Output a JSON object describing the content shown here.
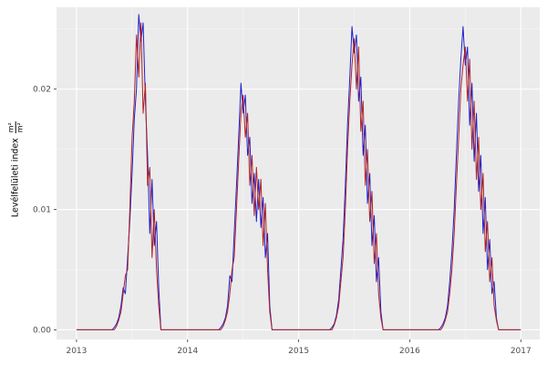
{
  "figure": {
    "background": "#FFFFFF"
  },
  "chart_data": {
    "type": "line",
    "title": "",
    "xlabel": "",
    "ylabel": {
      "text": "Levélfelületi index",
      "fraction_numerator": "m²",
      "fraction_denominator": "m²"
    },
    "x_start": 2013,
    "x_step": 0.02,
    "xlim": [
      2012.82,
      2017.17
    ],
    "ylim": [
      -0.0008,
      0.0268
    ],
    "x_ticks": {
      "labels": [
        "2013",
        "2014",
        "2015",
        "2016",
        "2017"
      ],
      "values": [
        2013,
        2014,
        2015,
        2016,
        2017
      ]
    },
    "y_ticks": {
      "labels": [
        "0.00",
        "0.01",
        "0.02"
      ],
      "values": [
        0,
        0.01,
        0.02
      ]
    },
    "x_minor": [
      2013.5,
      2014.5,
      2015.5,
      2016.5
    ],
    "y_minor": [
      0.005,
      0.015,
      0.025
    ],
    "grid": true,
    "legend": "none",
    "theme": {
      "panel_bg": "#EBEBEB",
      "grid_major": "#FFFFFF",
      "grid_minor": "#F7F7F7",
      "tick_label_color": "#4D4D4D",
      "tick_mark_color": "#333333",
      "axis_title_color": "#000000"
    },
    "series": [
      {
        "name": "blue",
        "color": "#2020CC",
        "values": [
          0,
          0,
          0,
          0,
          0,
          0,
          0,
          0,
          0,
          0,
          0,
          0,
          0,
          0,
          0,
          0,
          0,
          0.0002,
          0.0005,
          0.001,
          0.002,
          0.0035,
          0.003,
          0.006,
          0.009,
          0.013,
          0.0175,
          0.02,
          0.0262,
          0.024,
          0.0255,
          0.019,
          0.0145,
          0.008,
          0.0125,
          0.007,
          0.009,
          0.0035,
          0,
          0,
          0,
          0,
          0,
          0,
          0,
          0,
          0,
          0,
          0,
          0,
          0,
          0,
          0,
          0,
          0,
          0,
          0,
          0,
          0,
          0,
          0,
          0,
          0,
          0,
          0,
          0.0002,
          0.0005,
          0.001,
          0.002,
          0.0045,
          0.004,
          0.008,
          0.012,
          0.016,
          0.0205,
          0.018,
          0.0195,
          0.0145,
          0.016,
          0.0105,
          0.013,
          0.009,
          0.0125,
          0.0085,
          0.011,
          0.006,
          0.008,
          0.002,
          0,
          0,
          0,
          0,
          0,
          0,
          0,
          0,
          0,
          0,
          0,
          0,
          0,
          0,
          0,
          0,
          0,
          0,
          0,
          0,
          0,
          0,
          0,
          0,
          0,
          0,
          0,
          0.0002,
          0.0005,
          0.0012,
          0.0025,
          0.005,
          0.0075,
          0.012,
          0.017,
          0.021,
          0.0252,
          0.023,
          0.0245,
          0.019,
          0.021,
          0.0145,
          0.017,
          0.0105,
          0.013,
          0.007,
          0.0095,
          0.004,
          0.006,
          0.0015,
          0,
          0,
          0,
          0,
          0,
          0,
          0,
          0,
          0,
          0,
          0,
          0,
          0,
          0,
          0,
          0,
          0,
          0,
          0,
          0,
          0,
          0,
          0,
          0,
          0,
          0,
          0.0002,
          0.0005,
          0.001,
          0.002,
          0.004,
          0.0065,
          0.01,
          0.0145,
          0.019,
          0.0225,
          0.0252,
          0.022,
          0.0235,
          0.017,
          0.0205,
          0.014,
          0.018,
          0.0115,
          0.0145,
          0.008,
          0.011,
          0.005,
          0.0075,
          0.003,
          0.004,
          0.001,
          0,
          0,
          0,
          0,
          0,
          0,
          0,
          0,
          0,
          0,
          0
        ]
      },
      {
        "name": "darkred",
        "color": "#B22222",
        "values": [
          0,
          0,
          0,
          0,
          0,
          0,
          0,
          0,
          0,
          0,
          0,
          0,
          0,
          0,
          0,
          0,
          0,
          0,
          0.0003,
          0.0008,
          0.0015,
          0.003,
          0.0045,
          0.005,
          0.01,
          0.016,
          0.019,
          0.0245,
          0.021,
          0.0255,
          0.018,
          0.0205,
          0.012,
          0.0135,
          0.006,
          0.01,
          0.005,
          0.002,
          0,
          0,
          0,
          0,
          0,
          0,
          0,
          0,
          0,
          0,
          0,
          0,
          0,
          0,
          0,
          0,
          0,
          0,
          0,
          0,
          0,
          0,
          0,
          0,
          0,
          0,
          0,
          0,
          0.0003,
          0.0008,
          0.0015,
          0.003,
          0.005,
          0.006,
          0.01,
          0.014,
          0.018,
          0.0195,
          0.016,
          0.018,
          0.012,
          0.0145,
          0.0095,
          0.0135,
          0.01,
          0.0125,
          0.007,
          0.0105,
          0.005,
          0.0015,
          0,
          0,
          0,
          0,
          0,
          0,
          0,
          0,
          0,
          0,
          0,
          0,
          0,
          0,
          0,
          0,
          0,
          0,
          0,
          0,
          0,
          0,
          0,
          0,
          0,
          0,
          0,
          0,
          0.0004,
          0.001,
          0.002,
          0.004,
          0.006,
          0.01,
          0.015,
          0.019,
          0.022,
          0.0242,
          0.02,
          0.0235,
          0.0165,
          0.019,
          0.012,
          0.015,
          0.009,
          0.0115,
          0.0055,
          0.008,
          0.003,
          0.001,
          0,
          0,
          0,
          0,
          0,
          0,
          0,
          0,
          0,
          0,
          0,
          0,
          0,
          0,
          0,
          0,
          0,
          0,
          0,
          0,
          0,
          0,
          0,
          0,
          0,
          0,
          0,
          0.0003,
          0.0008,
          0.0015,
          0.003,
          0.005,
          0.008,
          0.012,
          0.016,
          0.02,
          0.022,
          0.0235,
          0.019,
          0.0225,
          0.015,
          0.019,
          0.0125,
          0.016,
          0.01,
          0.013,
          0.0065,
          0.009,
          0.004,
          0.006,
          0.002,
          0.0008,
          0,
          0,
          0,
          0,
          0,
          0,
          0,
          0,
          0,
          0,
          0
        ]
      }
    ]
  }
}
